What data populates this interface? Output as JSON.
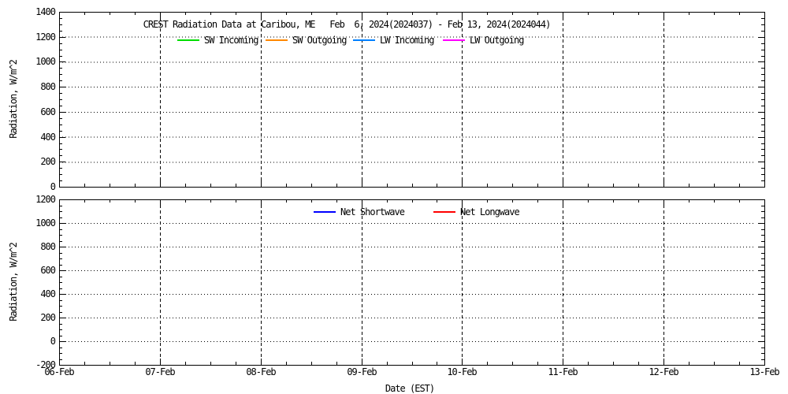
{
  "figure": {
    "background": "#ffffff",
    "frame_color": "#000000",
    "text_color": "#000000"
  },
  "chart_data": [
    {
      "type": "line",
      "title": "CREST Radiation Data at Caribou, ME   Feb  6, 2024(2024037) - Feb 13, 2024(2024044)",
      "ylabel": "Radiation, W/m^2",
      "xlabel": "",
      "ylim": [
        0,
        1400
      ],
      "ytick_step": 200,
      "yminor_step": 50,
      "yticks": [
        0,
        200,
        400,
        600,
        800,
        1000,
        1200,
        1400
      ],
      "x_range_days": 7,
      "x_minor_per_day": 4,
      "grid": true,
      "legend_position": "inside-top",
      "series": [
        {
          "name": "SW Incoming",
          "color": "#00dd00",
          "x": [],
          "values": []
        },
        {
          "name": "SW Outgoing",
          "color": "#ff8800",
          "x": [],
          "values": []
        },
        {
          "name": "LW Incoming",
          "color": "#0080ff",
          "x": [],
          "values": []
        },
        {
          "name": "LW Outgoing",
          "color": "#ff00ff",
          "x": [],
          "values": []
        }
      ],
      "note": "no data curves plotted; axes, gridlines and legend only"
    },
    {
      "type": "line",
      "title": "",
      "ylabel": "Radiation, W/m^2",
      "xlabel": "Date (EST)",
      "ylim": [
        -200,
        1200
      ],
      "ytick_step": 200,
      "yminor_step": 50,
      "yticks": [
        -200,
        0,
        200,
        400,
        600,
        800,
        1000,
        1200
      ],
      "x_range_days": 7,
      "x_minor_per_day": 4,
      "xtick_labels": [
        "06-Feb",
        "07-Feb",
        "08-Feb",
        "09-Feb",
        "10-Feb",
        "11-Feb",
        "12-Feb",
        "13-Feb"
      ],
      "grid": true,
      "legend_position": "inside-top",
      "series": [
        {
          "name": "Net Shortwave",
          "color": "#0000ff",
          "x": [],
          "values": []
        },
        {
          "name": "Net Longwave",
          "color": "#ff0000",
          "x": [],
          "values": []
        }
      ],
      "note": "no data curves plotted; axes, gridlines and legend only"
    }
  ]
}
